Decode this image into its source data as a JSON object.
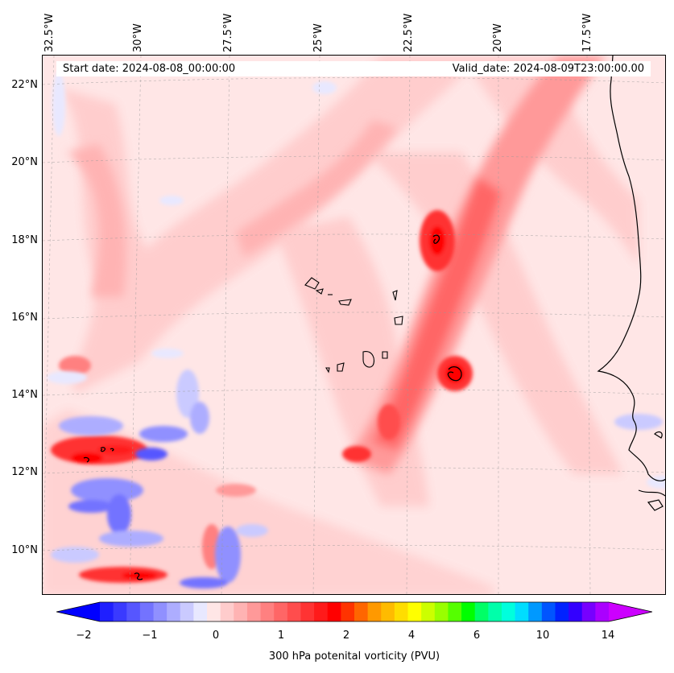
{
  "header": {
    "start_date": "Start date: 2024-08-08_00:00:00",
    "valid_date": "Valid_date: 2024-08-09T23:00:00.00"
  },
  "map": {
    "lon_labels": [
      "32.5°W",
      "30°W",
      "27.5°W",
      "25°W",
      "22.5°W",
      "20°W",
      "17.5°W"
    ],
    "lat_labels": [
      "22°N",
      "20°N",
      "18°N",
      "16°N",
      "14°N",
      "12°N",
      "10°N"
    ],
    "gridlines": "dashed"
  },
  "colorbar": {
    "label": "300 hPa potenital vorticity (PVU)",
    "ticks": [
      "−2",
      "−1",
      "0",
      "1",
      "2",
      "4",
      "6",
      "10",
      "14"
    ],
    "colors": [
      "#1f1fff",
      "#3a3aff",
      "#5656ff",
      "#7373ff",
      "#9090ff",
      "#adadff",
      "#cacaff",
      "#e8e8ff",
      "#ffe6e6",
      "#ffcccc",
      "#ffb3b3",
      "#ff9999",
      "#ff8080",
      "#ff6666",
      "#ff4d4d",
      "#ff3333",
      "#ff1a1a",
      "#ff0000",
      "#ff3300",
      "#ff6600",
      "#ff9900",
      "#ffbb00",
      "#ffdd00",
      "#ffff00",
      "#ccff00",
      "#99ff00",
      "#55ff00",
      "#00ff00",
      "#00ff66",
      "#00ffaa",
      "#00ffdd",
      "#00ddff",
      "#0099ff",
      "#0055ff",
      "#0022ff",
      "#3300ff",
      "#7700ff",
      "#aa00ff"
    ],
    "under_color": "#0000ff",
    "over_color": "#cc00ff"
  },
  "chart_data": {
    "type": "heatmap",
    "variable": "300 hPa potenital vorticity (PVU)",
    "colorbar_ticks": [
      -2,
      -1,
      0,
      1,
      2,
      4,
      6,
      10,
      14
    ],
    "lon_range": [
      -33,
      -15.5
    ],
    "lat_range": [
      9,
      22.8
    ],
    "features": [
      {
        "name": "PV streamer",
        "from": [
          -30.5,
          9.5
        ],
        "to": [
          -18,
          22.8
        ],
        "pv_max": 2.0
      },
      {
        "name": "PV maximum",
        "lon": -21.5,
        "lat": 18.1,
        "pv": 2.0
      },
      {
        "name": "PV maximum",
        "lon": -21.1,
        "lat": 14.5,
        "pv": 2.0
      },
      {
        "name": "PV maximum",
        "lon": -31.6,
        "lat": 12.4,
        "pv": 2.0
      },
      {
        "name": "PV maximum",
        "lon": -29.7,
        "lat": 9.3,
        "pv": 2.0
      },
      {
        "name": "PV minimum",
        "lon": -30.5,
        "lat": 11.8,
        "pv": -1.5
      }
    ]
  }
}
